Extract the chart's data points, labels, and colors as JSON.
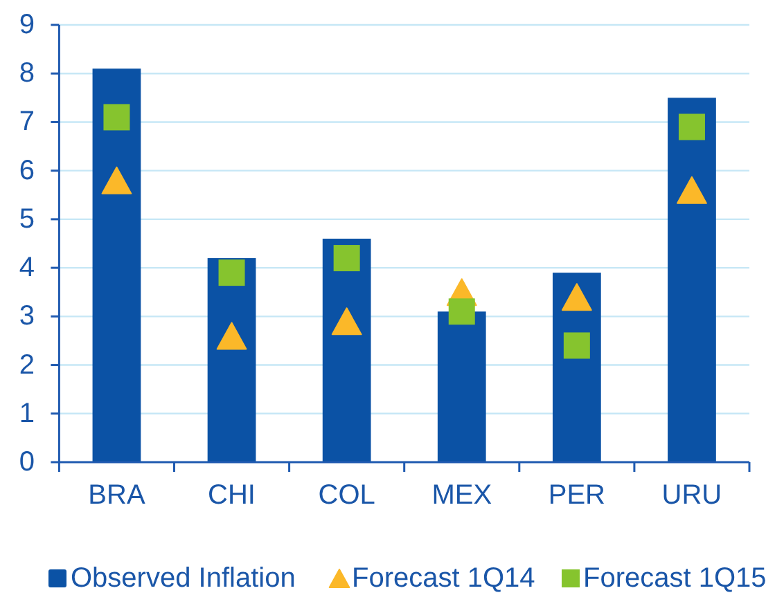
{
  "chart_data": {
    "type": "bar",
    "categories": [
      "BRA",
      "CHI",
      "COL",
      "MEX",
      "PER",
      "URU"
    ],
    "series": [
      {
        "name": "Observed Inflation",
        "color": "#0b52a5",
        "values": [
          8.1,
          4.2,
          4.6,
          3.1,
          3.9,
          7.5
        ]
      },
      {
        "name": "Forecast 1Q14",
        "type": "scatter",
        "marker": "triangle",
        "color": "#fbb829",
        "values": [
          5.8,
          2.6,
          2.9,
          3.5,
          3.4,
          5.6
        ]
      },
      {
        "name": "Forecast 1Q15",
        "type": "scatter",
        "marker": "square",
        "color": "#86c42e",
        "values": [
          7.1,
          3.9,
          4.2,
          3.1,
          2.4,
          6.9
        ]
      }
    ],
    "ylim": [
      0,
      9
    ],
    "yticks": [
      0,
      1,
      2,
      3,
      4,
      5,
      6,
      7,
      8,
      9
    ],
    "grid": "y",
    "legend": "bottom"
  }
}
